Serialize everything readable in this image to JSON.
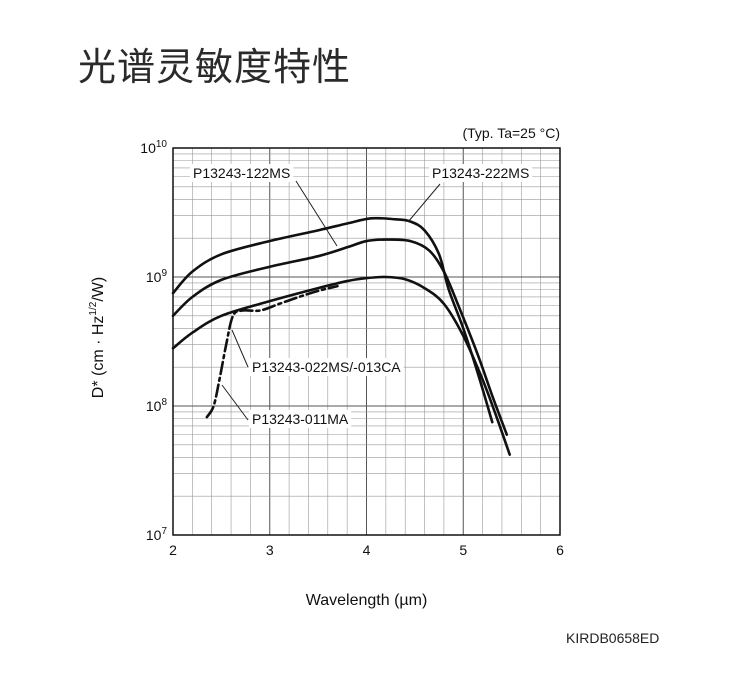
{
  "title": "光谱灵敏度特性",
  "doc_code": "KIRDB0658ED",
  "chart_data": {
    "type": "line",
    "title": "",
    "condition_note": "(Typ. Ta=25 °C)",
    "xlabel": "Wavelength (µm)",
    "ylabel_parts": {
      "main": "D* (cm · Hz",
      "sup": "1/2",
      "tail": "/W)"
    },
    "xlim": [
      2,
      6
    ],
    "ylim": [
      10000000.0,
      10000000000.0
    ],
    "yscale": "log",
    "grid": true,
    "x_ticks": [
      {
        "value": 2,
        "label": "2"
      },
      {
        "value": 3,
        "label": "3"
      },
      {
        "value": 4,
        "label": "4"
      },
      {
        "value": 5,
        "label": "5"
      },
      {
        "value": 6,
        "label": "6"
      }
    ],
    "y_ticks": [
      {
        "value": 10000000.0,
        "base": "10",
        "exp": "7"
      },
      {
        "value": 100000000.0,
        "base": "10",
        "exp": "8"
      },
      {
        "value": 1000000000.0,
        "base": "10",
        "exp": "9"
      },
      {
        "value": 10000000000.0,
        "base": "10",
        "exp": "10"
      }
    ],
    "series": [
      {
        "name": "P13243-222MS",
        "style": "solid",
        "x": [
          2.0,
          2.2,
          2.5,
          3.0,
          3.5,
          3.8,
          4.05,
          4.3,
          4.45,
          4.6,
          4.75,
          4.85,
          5.0,
          5.15,
          5.3
        ],
        "y": [
          750000000.0,
          1100000000.0,
          1500000000.0,
          1900000000.0,
          2300000000.0,
          2600000000.0,
          2850000000.0,
          2800000000.0,
          2700000000.0,
          2300000000.0,
          1500000000.0,
          800000000.0,
          400000000.0,
          180000000.0,
          75000000.0
        ]
      },
      {
        "name": "P13243-122MS",
        "style": "solid",
        "x": [
          2.0,
          2.2,
          2.5,
          3.0,
          3.5,
          3.8,
          4.0,
          4.2,
          4.45,
          4.65,
          4.8,
          4.95,
          5.15,
          5.3,
          5.45
        ],
        "y": [
          500000000.0,
          700000000.0,
          950000000.0,
          1200000000.0,
          1450000000.0,
          1700000000.0,
          1900000000.0,
          1950000000.0,
          1900000000.0,
          1600000000.0,
          1100000000.0,
          600000000.0,
          250000000.0,
          120000000.0,
          60000000.0
        ]
      },
      {
        "name": "P13243-022MS/-013CA",
        "style": "solid",
        "x": [
          2.0,
          2.2,
          2.5,
          3.0,
          3.5,
          3.8,
          4.0,
          4.2,
          4.4,
          4.6,
          4.8,
          5.0,
          5.2,
          5.35,
          5.48
        ],
        "y": [
          280000000.0,
          370000000.0,
          500000000.0,
          650000000.0,
          820000000.0,
          930000000.0,
          980000000.0,
          1000000000.0,
          960000000.0,
          820000000.0,
          620000000.0,
          350000000.0,
          160000000.0,
          80000000.0,
          42000000.0
        ]
      },
      {
        "name": "P13243-011MA",
        "style": "dashdot",
        "x": [
          2.35,
          2.42,
          2.48,
          2.55,
          2.62,
          2.72,
          2.9,
          3.1,
          3.3,
          3.5,
          3.7
        ],
        "y": [
          82000000.0,
          100000000.0,
          160000000.0,
          300000000.0,
          500000000.0,
          550000000.0,
          550000000.0,
          620000000.0,
          700000000.0,
          780000000.0,
          850000000.0
        ]
      }
    ],
    "annotations": [
      {
        "text": "P13243-122MS",
        "target_series": "P13243-122MS"
      },
      {
        "text": "P13243-222MS",
        "target_series": "P13243-222MS"
      },
      {
        "text": "P13243-022MS/-013CA",
        "target_series": "P13243-022MS/-013CA"
      },
      {
        "text": "P13243-011MA",
        "target_series": "P13243-011MA"
      }
    ]
  }
}
